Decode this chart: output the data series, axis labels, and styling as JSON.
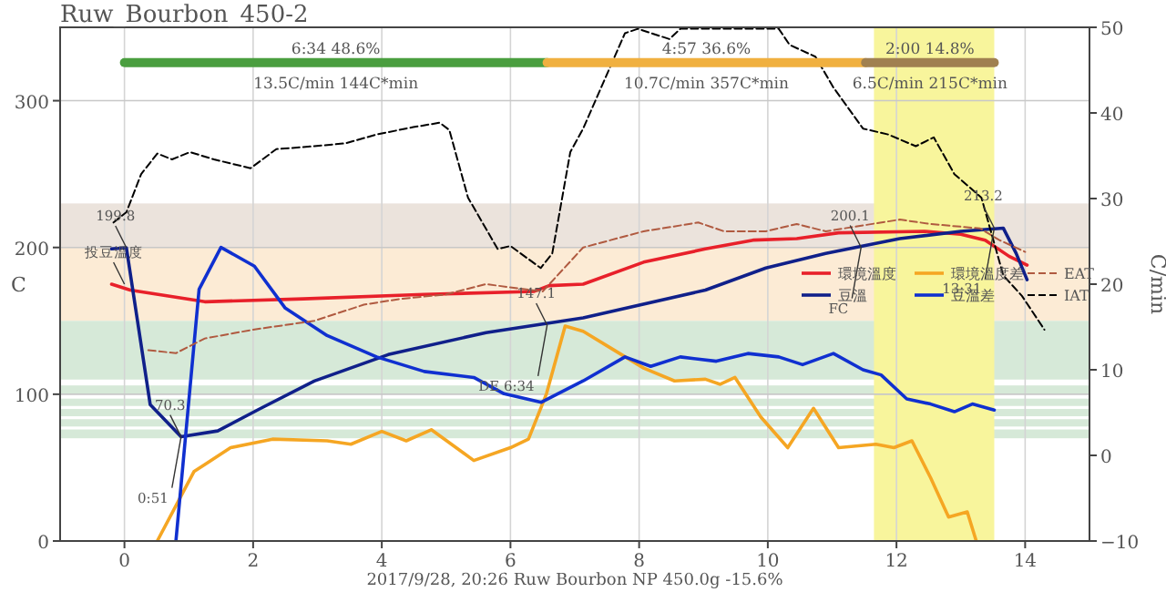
{
  "chart_data": {
    "type": "line",
    "title": "Ruw_Bourbon_450-2",
    "ylabel": "C",
    "y2label": "C/min",
    "xlim": [
      -1,
      15
    ],
    "xticks": [
      0,
      2,
      4,
      6,
      8,
      10,
      12,
      14
    ],
    "ylim": [
      0,
      350
    ],
    "yticks": [
      0,
      100,
      200,
      300
    ],
    "y2lim": [
      -10,
      50
    ],
    "y2ticks": [
      {
        "value": -10,
        "label": "−10"
      },
      0,
      10,
      20,
      30,
      40,
      50
    ],
    "grid": true,
    "legend": "right",
    "bands": [
      {
        "axis": "y",
        "from": 200,
        "to": 230,
        "color": "#ebe3dc"
      },
      {
        "axis": "y",
        "from": 150,
        "to": 200,
        "color": "#fcebd5"
      },
      {
        "axis": "y",
        "from": 110,
        "to": 150,
        "color": "#d6e9d8"
      },
      {
        "axis": "y",
        "from": 100,
        "to": 106,
        "color": "#d6e9d8"
      },
      {
        "axis": "y",
        "from": 92,
        "to": 97,
        "color": "#d6e9d8"
      },
      {
        "axis": "y",
        "from": 85,
        "to": 90,
        "color": "#d6e9d8"
      },
      {
        "axis": "y",
        "from": 78,
        "to": 83,
        "color": "#d6e9d8"
      },
      {
        "axis": "y",
        "from": 70,
        "to": 76,
        "color": "#d6e9d8"
      },
      {
        "axis": "x",
        "from": 11.65,
        "to": 13.52,
        "color": "#f8f59c"
      }
    ],
    "series": [
      {
        "name": "環境溫度",
        "color": "#e8202a",
        "line_style": "solid",
        "x": [
          -0.2,
          0.09,
          1.25,
          2.78,
          4.66,
          6.36,
          6.6,
          7.13,
          8.07,
          9.03,
          9.77,
          10.45,
          11.1,
          12.44,
          13.0,
          13.38,
          13.75,
          14.03
        ],
        "values": [
          175,
          171,
          163,
          165,
          168,
          170,
          174,
          175,
          190,
          199,
          205,
          206,
          210,
          211,
          209,
          205,
          194,
          188
        ]
      },
      {
        "name": "豆溫",
        "color": "#10208a",
        "line_style": "solid",
        "x": [
          -0.2,
          0.03,
          0.4,
          0.88,
          1.45,
          2.1,
          2.95,
          4.1,
          5.62,
          7.13,
          9.03,
          9.97,
          10.9,
          12.05,
          13.0,
          13.66,
          13.86,
          14.03
        ],
        "values": [
          199,
          199.8,
          93,
          71,
          75,
          90,
          109,
          127,
          142,
          152,
          171,
          186,
          196,
          206,
          211,
          213.2,
          196,
          178
        ]
      },
      {
        "name": "環境溫度差",
        "color": "#f5a623",
        "line_style": "solid",
        "axis": "y2",
        "x": [
          0.51,
          1.08,
          1.65,
          2.3,
          3.15,
          3.52,
          4.0,
          4.38,
          4.77,
          5.43,
          6.0,
          6.28,
          6.56,
          6.85,
          7.13,
          7.61,
          8.07,
          8.55,
          9.03,
          9.26,
          9.49,
          9.89,
          10.31,
          10.71,
          11.1,
          11.68,
          11.96,
          12.24,
          12.53,
          12.81,
          13.1,
          13.24
        ],
        "values": [
          -10,
          -1.9,
          0.9,
          1.9,
          1.7,
          1.3,
          2.8,
          1.7,
          3,
          -0.6,
          0.9,
          1.9,
          7.2,
          15.1,
          14.5,
          12.3,
          10.2,
          8.7,
          8.9,
          8.3,
          9.1,
          4.5,
          0.9,
          5.5,
          0.9,
          1.3,
          0.9,
          1.7,
          -2.6,
          -7.2,
          -6.6,
          -10
        ]
      },
      {
        "name": "豆溫差",
        "color": "#1030d0",
        "line_style": "solid",
        "axis": "y2",
        "x": [
          0.8,
          1.16,
          1.5,
          2.02,
          2.5,
          3.15,
          3.92,
          4.66,
          5.43,
          5.9,
          6.48,
          7.13,
          7.78,
          8.18,
          8.64,
          9.2,
          9.69,
          10.17,
          10.54,
          11.02,
          11.48,
          11.76,
          12.16,
          12.53,
          12.9,
          13.18,
          13.52
        ],
        "values": [
          -10,
          19.4,
          24.3,
          22.1,
          17.2,
          14,
          11.5,
          9.8,
          9.1,
          7.2,
          6.2,
          8.7,
          11.5,
          10.4,
          11.5,
          11,
          11.9,
          11.5,
          10.6,
          11.9,
          10,
          9.4,
          6.6,
          6,
          5.1,
          6,
          5.3
        ]
      },
      {
        "name": "EAT",
        "color": "#b05a40",
        "line_style": "dashed",
        "x": [
          0.37,
          0.8,
          1.25,
          2.0,
          2.95,
          3.72,
          4.29,
          5.0,
          5.62,
          6.5,
          7.13,
          8.07,
          8.92,
          9.32,
          9.97,
          10.45,
          10.9,
          12.05,
          12.53,
          13.3,
          13.6,
          14.0
        ],
        "values": [
          130,
          128,
          138,
          144,
          150,
          161,
          165,
          168,
          175,
          170,
          200,
          211,
          217,
          211,
          211,
          216,
          211,
          219,
          216,
          213,
          205,
          197
        ]
      },
      {
        "name": "IAT",
        "color": "#000000",
        "line_style": "dashed",
        "x": [
          -0.17,
          0.03,
          0.26,
          0.51,
          0.74,
          1.02,
          1.39,
          1.96,
          2.36,
          2.95,
          3.44,
          3.92,
          4.49,
          4.9,
          5.05,
          5.34,
          5.8,
          6.0,
          6.47,
          6.65,
          6.93,
          7.13,
          7.78,
          7.98,
          8.47,
          8.64,
          10.17,
          10.34,
          10.74,
          11.02,
          11.48,
          11.87,
          12.3,
          12.58,
          12.9,
          13.32,
          13.66,
          13.95,
          14.3
        ],
        "values": [
          217,
          224,
          250,
          264,
          260,
          265,
          260,
          254,
          267,
          269,
          271,
          277,
          282,
          285,
          280,
          234,
          199,
          201,
          186,
          196,
          265,
          281,
          346,
          349,
          342,
          349,
          349,
          338,
          330,
          309,
          281,
          277,
          269,
          275,
          250,
          234,
          181,
          167,
          144
        ]
      },
      {
        "color": "#4a9e3f",
        "line_style": "solid",
        "x": [
          0,
          6.57
        ],
        "values": [
          326,
          326
        ]
      },
      {
        "color": "#f0b040",
        "line_style": "solid",
        "x": [
          6.57,
          11.52
        ],
        "values": [
          326,
          326
        ]
      },
      {
        "color": "#a08050",
        "line_style": "solid",
        "x": [
          11.52,
          13.52
        ],
        "values": [
          326,
          326
        ]
      }
    ],
    "annotations": [
      "6:34  48.6%",
      "13.5C/min  144C*min",
      "4:57  36.6%",
      "10.7C/min  357C*min",
      "2:00  14.8%",
      "6.5C/min  215C*min",
      {
        "text": "199.8",
        "x": 0.03,
        "y": 199.8
      },
      {
        "text": "投豆溫度",
        "x": 0.0,
        "y": 175
      },
      {
        "text": "70.3",
        "x": 0.88,
        "y": 71
      },
      {
        "text": "0:51",
        "x": 0.88,
        "y": 71
      },
      {
        "text": "147.1",
        "x": 6.57,
        "y": 147.1
      },
      {
        "text": "DE 6:34",
        "x": 6.57,
        "y": 147.1
      },
      {
        "text": "200.1",
        "x": 11.45,
        "y": 200.1
      },
      {
        "text": "FC",
        "x": 11.45,
        "y": 200.1
      },
      {
        "text": "213.2",
        "x": 13.52,
        "y": 213.2
      },
      {
        "text": "13:31",
        "x": 13.52,
        "y": 213.2
      },
      "2017/9/28, 20:26   Ruw Bourbon NP   450.0g   -15.6%"
    ]
  }
}
